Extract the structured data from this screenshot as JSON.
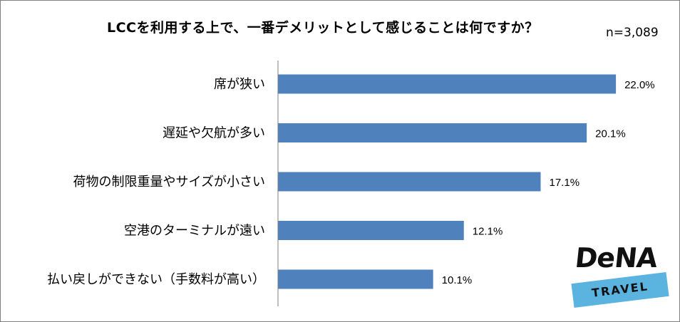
{
  "chart_data": {
    "type": "bar",
    "orientation": "horizontal",
    "title": "LCCを利用する上で、一番デメリットとして感じることは何ですか？",
    "annotation": "n=3,089",
    "categories": [
      "席が狭い",
      "遅延や欠航が多い",
      "荷物の制限重量やサイズが小さい",
      "空港のターミナルが遠い",
      "払い戻しができない（手数料が高い）"
    ],
    "values": [
      22.0,
      20.1,
      17.1,
      12.1,
      10.1
    ],
    "value_labels": [
      "22.0%",
      "20.1%",
      "17.1%",
      "12.1%",
      "10.1%"
    ],
    "xlim": [
      0,
      25
    ],
    "grid": false,
    "legend": "none",
    "bar_color": "#4f81bd"
  },
  "logo": {
    "brand": "DeNA",
    "sub": "TRAVEL",
    "accent": "#5bb3e0"
  }
}
